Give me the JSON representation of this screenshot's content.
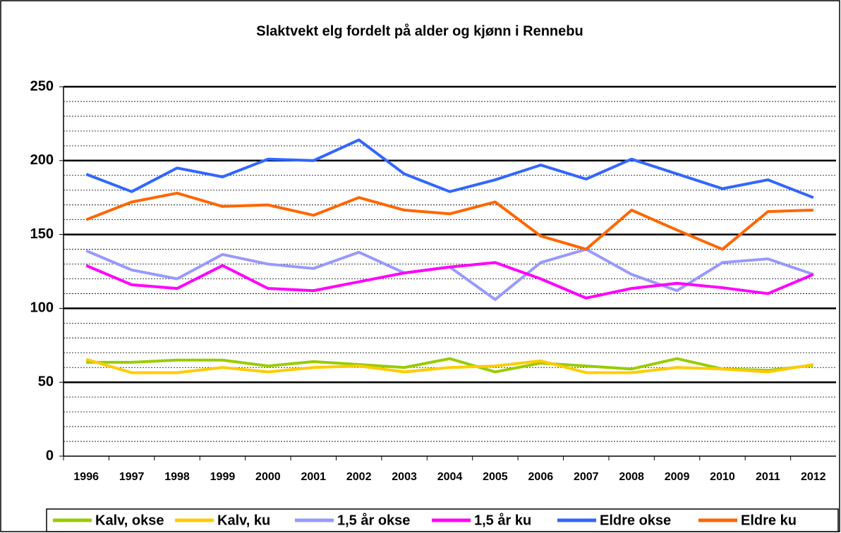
{
  "chart_data": {
    "type": "line",
    "title": "Slaktvekt elg fordelt på alder og kjønn i Rennebu",
    "categories": [
      "1996",
      "1997",
      "1998",
      "1999",
      "2000",
      "2001",
      "2002",
      "2003",
      "2004",
      "2005",
      "2006",
      "2007",
      "2008",
      "2009",
      "2010",
      "2011",
      "2012"
    ],
    "series": [
      {
        "name": "Kalv, okse",
        "color": "#99cc00",
        "values": [
          63.5,
          63.5,
          65,
          65,
          61,
          64,
          62,
          60,
          66,
          57,
          63,
          61,
          59,
          66,
          59,
          58,
          61.5
        ]
      },
      {
        "name": "Kalv, ku",
        "color": "#ffcc00",
        "values": [
          65.5,
          56.5,
          56.5,
          60,
          57,
          60,
          61,
          57,
          60,
          61,
          64.5,
          56.5,
          56.5,
          60,
          59,
          57,
          62
        ]
      },
      {
        "name": "1,5 år okse",
        "color": "#9999ff",
        "values": [
          139,
          126,
          120,
          136.5,
          130,
          127,
          138,
          124,
          128,
          106,
          131,
          140,
          123,
          112,
          131,
          133.5,
          123
        ]
      },
      {
        "name": "1,5 år ku",
        "color": "#ff00ff",
        "values": [
          129,
          116,
          113.5,
          129,
          113.5,
          112,
          118,
          124,
          128,
          131,
          120,
          107,
          113.5,
          117,
          114,
          110,
          123
        ]
      },
      {
        "name": "Eldre okse",
        "color": "#3366ff",
        "values": [
          190.8,
          179,
          195,
          189,
          201,
          200,
          214,
          191,
          179,
          187,
          197,
          187.5,
          201,
          191,
          181,
          187,
          175
        ]
      },
      {
        "name": "Eldre ku",
        "color": "#ff6600",
        "values": [
          160,
          172,
          178,
          169,
          170,
          163,
          175,
          166.5,
          164,
          172,
          149,
          140,
          166.5,
          153,
          140,
          165.5,
          166.5
        ]
      }
    ],
    "ylim": [
      0,
      250
    ],
    "yticks": [
      0,
      50,
      100,
      150,
      200,
      250
    ],
    "minor_yticks": [
      10,
      20,
      30,
      40,
      60,
      70,
      80,
      90,
      110,
      120,
      130,
      140,
      160,
      170,
      180,
      190,
      210,
      220,
      230,
      240
    ],
    "grid": true,
    "legend": "bottom"
  }
}
